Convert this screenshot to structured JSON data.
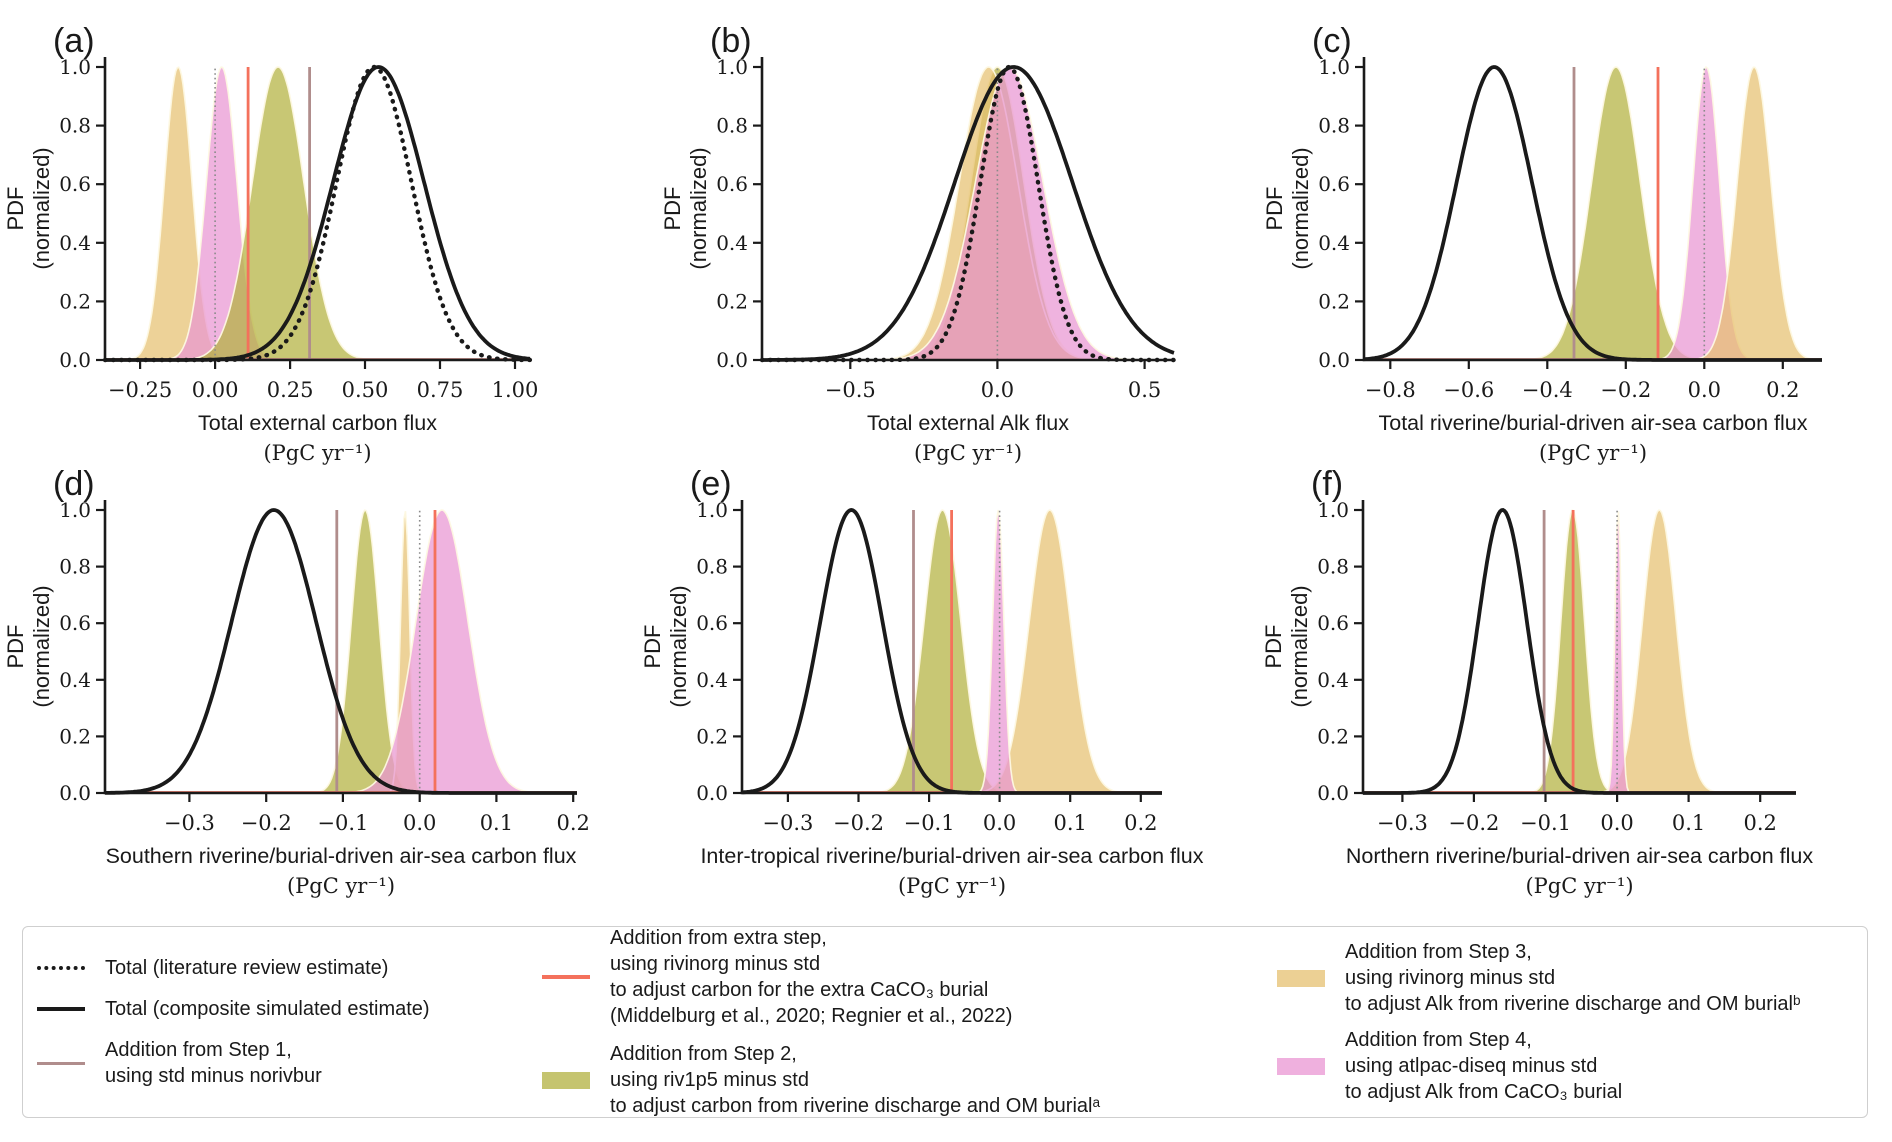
{
  "figure_bg": "#ffffff",
  "ylabel_line1": "PDF",
  "ylabel_line2": "(normalized)",
  "yticks": [
    {
      "v": 0.0,
      "t": "0.0"
    },
    {
      "v": 0.2,
      "t": "0.2"
    },
    {
      "v": 0.4,
      "t": "0.4"
    },
    {
      "v": 0.6,
      "t": "0.6"
    },
    {
      "v": 0.8,
      "t": "0.8"
    },
    {
      "v": 1.0,
      "t": "1.0"
    }
  ],
  "colors": {
    "black": "#1a1a1a",
    "brown": "#b08d8c",
    "salmon": "#f4715c",
    "olive": "#b3b13f",
    "tan": "#e6c070",
    "pink": "#e996d3",
    "grey": "#8a8a8a",
    "fill_edge": "#fdf8e2",
    "legend_olive": "#c5c46f",
    "legend_tan": "#ecd094",
    "legend_pink": "#efb0de"
  },
  "chart_data": [
    {
      "id": "a",
      "type": "line",
      "label": "(a)",
      "xlabel": "Total external carbon flux",
      "xunit": "(PgC yr⁻¹)",
      "xlim": [
        -0.367,
        1.05
      ],
      "ylim": [
        0,
        1.04
      ],
      "xticks": [
        {
          "v": -0.25,
          "t": "−0.25"
        },
        {
          "v": 0.0,
          "t": "0.00"
        },
        {
          "v": 0.25,
          "t": "0.25"
        },
        {
          "v": 0.5,
          "t": "0.50"
        },
        {
          "v": 0.75,
          "t": "0.75"
        },
        {
          "v": 1.0,
          "t": "1.00"
        }
      ],
      "curves": [
        {
          "kind": "fill",
          "name": "step3-alk-riverine-om-burial",
          "color": "tan",
          "mean": -0.123,
          "std": 0.046
        },
        {
          "kind": "fill",
          "name": "step4-alk-caco3-burial",
          "color": "pink",
          "mean": 0.022,
          "std": 0.051
        },
        {
          "kind": "fill",
          "name": "step2-carbon-riverine-om-burial",
          "color": "olive",
          "mean": 0.21,
          "std": 0.086
        },
        {
          "kind": "vline",
          "name": "zero-reference",
          "color": "grey",
          "style": "dotted",
          "x": 0.0
        },
        {
          "kind": "vline",
          "name": "extra-step-caco3",
          "color": "salmon",
          "x": 0.11
        },
        {
          "kind": "vline",
          "name": "step1-norivbur",
          "color": "brown",
          "x": 0.315
        },
        {
          "kind": "line",
          "name": "total-literature-estimate",
          "color": "black",
          "style": "dotted",
          "mean": 0.53,
          "std": 0.125
        },
        {
          "kind": "line",
          "name": "total-composite-simulated",
          "color": "black",
          "style": "solid",
          "mean": 0.545,
          "std": 0.152
        }
      ]
    },
    {
      "id": "b",
      "type": "line",
      "label": "(b)",
      "xlabel": "Total external Alk flux",
      "xunit": "(PgC yr⁻¹)",
      "xlim": [
        -0.8,
        0.6
      ],
      "ylim": [
        0,
        1.04
      ],
      "xticks": [
        {
          "v": -0.5,
          "t": "−0.5"
        },
        {
          "v": 0.0,
          "t": "0.0"
        },
        {
          "v": 0.5,
          "t": "0.5"
        }
      ],
      "curves": [
        {
          "kind": "fill",
          "name": "step2-carbon-riverine-om-burial",
          "color": "olive",
          "mean": 0.0,
          "std": 0.09
        },
        {
          "kind": "fill",
          "name": "step3-alk-riverine-om-burial",
          "color": "tan",
          "mean": -0.03,
          "std": 0.1
        },
        {
          "kind": "fill",
          "name": "step4-alk-caco3-burial",
          "color": "pink",
          "mean": 0.04,
          "std": 0.115
        },
        {
          "kind": "vline",
          "name": "zero-reference",
          "color": "grey",
          "style": "dotted",
          "x": 0.0
        },
        {
          "kind": "line",
          "name": "total-literature-estimate",
          "color": "black",
          "style": "dotted",
          "mean": 0.04,
          "std": 0.098
        },
        {
          "kind": "line",
          "name": "total-composite-simulated",
          "color": "black",
          "style": "solid",
          "mean": 0.055,
          "std": 0.2
        }
      ]
    },
    {
      "id": "c",
      "type": "line",
      "label": "(c)",
      "xlabel": "Total riverine/burial-driven air-sea carbon flux",
      "xunit": "(PgC yr⁻¹)",
      "xlim": [
        -0.867,
        0.3
      ],
      "ylim": [
        0,
        1.04
      ],
      "xticks": [
        {
          "v": -0.8,
          "t": "−0.8"
        },
        {
          "v": -0.6,
          "t": "−0.6"
        },
        {
          "v": -0.4,
          "t": "−0.4"
        },
        {
          "v": -0.2,
          "t": "−0.2"
        },
        {
          "v": 0.0,
          "t": "0.0"
        },
        {
          "v": 0.2,
          "t": "0.2"
        }
      ],
      "curves": [
        {
          "kind": "fill",
          "name": "step2-carbon-riverine-om-burial",
          "color": "olive",
          "mean": -0.225,
          "std": 0.062
        },
        {
          "kind": "fill",
          "name": "step4-alk-caco3-burial",
          "color": "pink",
          "mean": 0.005,
          "std": 0.034
        },
        {
          "kind": "fill",
          "name": "step3-alk-riverine-om-burial",
          "color": "tan",
          "mean": 0.127,
          "std": 0.043
        },
        {
          "kind": "vline",
          "name": "zero-reference",
          "color": "grey",
          "style": "dotted",
          "x": 0.0
        },
        {
          "kind": "vline",
          "name": "extra-step-caco3",
          "color": "salmon",
          "x": -0.118
        },
        {
          "kind": "vline",
          "name": "step1-norivbur",
          "color": "brown",
          "x": -0.332
        },
        {
          "kind": "line",
          "name": "total-composite-simulated",
          "color": "black",
          "style": "solid",
          "mean": -0.535,
          "std": 0.096
        }
      ]
    },
    {
      "id": "d",
      "type": "line",
      "label": "(d)",
      "xlabel": "Southern riverine/burial-driven air-sea carbon flux",
      "xunit": "(PgC yr⁻¹)",
      "xlim": [
        -0.41,
        0.205
      ],
      "ylim": [
        0,
        1.04
      ],
      "xticks": [
        {
          "v": -0.3,
          "t": "−0.3"
        },
        {
          "v": -0.2,
          "t": "−0.2"
        },
        {
          "v": -0.1,
          "t": "−0.1"
        },
        {
          "v": 0.0,
          "t": "0.0"
        },
        {
          "v": 0.1,
          "t": "0.1"
        },
        {
          "v": 0.2,
          "t": "0.2"
        }
      ],
      "curves": [
        {
          "kind": "fill",
          "name": "step2-carbon-riverine-om-burial",
          "color": "olive",
          "mean": -0.071,
          "std": 0.018
        },
        {
          "kind": "fill",
          "name": "step3-alk-riverine-om-burial",
          "color": "tan",
          "mean": -0.019,
          "std": 0.006
        },
        {
          "kind": "fill",
          "name": "step4-alk-caco3-burial",
          "color": "pink",
          "mean": 0.029,
          "std": 0.034
        },
        {
          "kind": "vline",
          "name": "step1-norivbur",
          "color": "brown",
          "x": -0.108
        },
        {
          "kind": "vline",
          "name": "zero-reference",
          "color": "grey",
          "style": "dotted",
          "x": 0.0
        },
        {
          "kind": "vline",
          "name": "extra-step-caco3",
          "color": "salmon",
          "x": 0.02
        },
        {
          "kind": "line",
          "name": "total-composite-simulated",
          "color": "black",
          "style": "solid",
          "mean": -0.19,
          "std": 0.055
        }
      ]
    },
    {
      "id": "e",
      "type": "line",
      "label": "(e)",
      "xlabel": "Inter-tropical riverine/burial-driven air-sea carbon flux",
      "xunit": "(PgC yr⁻¹)",
      "xlim": [
        -0.365,
        0.23
      ],
      "ylim": [
        0,
        1.04
      ],
      "xticks": [
        {
          "v": -0.3,
          "t": "−0.3"
        },
        {
          "v": -0.2,
          "t": "−0.2"
        },
        {
          "v": -0.1,
          "t": "−0.1"
        },
        {
          "v": 0.0,
          "t": "0.0"
        },
        {
          "v": 0.1,
          "t": "0.1"
        },
        {
          "v": 0.2,
          "t": "0.2"
        }
      ],
      "curves": [
        {
          "kind": "fill",
          "name": "step2-carbon-riverine-om-burial",
          "color": "olive",
          "mean": -0.081,
          "std": 0.026
        },
        {
          "kind": "fill",
          "name": "step3-alk-riverine-om-burial",
          "color": "tan",
          "mean": 0.071,
          "std": 0.029
        },
        {
          "kind": "fill",
          "name": "step4-alk-caco3-burial",
          "color": "pink",
          "mean": -0.002,
          "std": 0.008
        },
        {
          "kind": "vline",
          "name": "step1-norivbur",
          "color": "brown",
          "x": -0.122
        },
        {
          "kind": "vline",
          "name": "extra-step-caco3",
          "color": "salmon",
          "x": -0.068
        },
        {
          "kind": "vline",
          "name": "zero-reference",
          "color": "grey",
          "style": "dotted",
          "x": 0.0
        },
        {
          "kind": "line",
          "name": "total-composite-simulated",
          "color": "black",
          "style": "solid",
          "mean": -0.21,
          "std": 0.044
        }
      ]
    },
    {
      "id": "f",
      "type": "line",
      "label": "(f)",
      "xlabel": "Northern riverine/burial-driven air-sea carbon flux",
      "xunit": "(PgC yr⁻¹)",
      "xlim": [
        -0.355,
        0.25
      ],
      "ylim": [
        0,
        1.04
      ],
      "xticks": [
        {
          "v": -0.3,
          "t": "−0.3"
        },
        {
          "v": -0.2,
          "t": "−0.2"
        },
        {
          "v": -0.1,
          "t": "−0.1"
        },
        {
          "v": 0.0,
          "t": "0.0"
        },
        {
          "v": 0.1,
          "t": "0.1"
        },
        {
          "v": 0.2,
          "t": "0.2"
        }
      ],
      "curves": [
        {
          "kind": "fill",
          "name": "step2-carbon-riverine-om-burial",
          "color": "olive",
          "mean": -0.062,
          "std": 0.0165
        },
        {
          "kind": "fill",
          "name": "step3-alk-riverine-om-burial",
          "color": "tan",
          "mean": 0.059,
          "std": 0.0235
        },
        {
          "kind": "fill",
          "name": "step4-alk-caco3-burial",
          "color": "pink",
          "mean": 0.0015,
          "std": 0.0045
        },
        {
          "kind": "vline",
          "name": "step1-norivbur",
          "color": "brown",
          "x": -0.102
        },
        {
          "kind": "vline",
          "name": "extra-step-caco3",
          "color": "salmon",
          "x": -0.0615
        },
        {
          "kind": "vline",
          "name": "zero-reference",
          "color": "grey",
          "style": "dotted",
          "x": 0.0
        },
        {
          "kind": "line",
          "name": "total-composite-simulated",
          "color": "black",
          "style": "solid",
          "mean": -0.16,
          "std": 0.034
        }
      ]
    }
  ],
  "legend": {
    "entries": [
      {
        "type": "dotted-line",
        "label": "Total (literature review estimate)"
      },
      {
        "type": "solid-line",
        "label": "Total (composite simulated estimate)"
      },
      {
        "type": "brown-line",
        "label": "Addition from Step 1,\nusing std minus norivbur"
      },
      {
        "type": "salmon-line",
        "label": "Addition from extra step,\nusing rivinorg minus std\nto adjust carbon for the extra CaCO₃ burial\n(Middelburg et al., 2020; Regnier et al., 2022)"
      },
      {
        "type": "olive-patch",
        "label": "Addition from Step 2,\nusing riv1p5 minus std\nto adjust carbon from riverine discharge and OM burialᵃ"
      },
      {
        "type": "tan-patch",
        "label": "Addition from Step 3,\nusing rivinorg minus std\nto adjust Alk from riverine discharge and OM burialᵇ"
      },
      {
        "type": "pink-patch",
        "label": "Addition from Step 4,\nusing atlpac-diseq minus std\nto adjust Alk from CaCO₃ burial"
      }
    ]
  }
}
